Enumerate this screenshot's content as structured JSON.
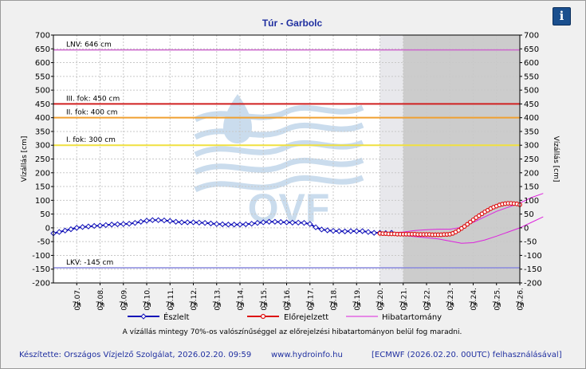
{
  "header": {
    "title": "Túr - Garbolc",
    "info_button_label": "i",
    "info_icon": "info-icon"
  },
  "colors": {
    "background": "#f0f0f0",
    "plot_background": "#ffffff",
    "shade_light": "#e8e8ec",
    "shade_dark": "#cccccc",
    "observed": "#1010b8",
    "forecast": "#dd1010",
    "error_band": "#dd22dd",
    "lnv": "#cc66cc",
    "lkv": "#8888dd",
    "level_3": "#d02020",
    "level_2": "#f0a030",
    "level_1": "#f0e040"
  },
  "chart_data": {
    "type": "line",
    "ylabel_left": "Vízállás [cm]",
    "ylabel_right": "Vízállás [cm]",
    "ylim": [
      -200,
      700
    ],
    "yticks": [
      -200,
      -150,
      -100,
      -50,
      0,
      50,
      100,
      150,
      200,
      250,
      300,
      350,
      400,
      450,
      500,
      550,
      600,
      650,
      700
    ],
    "x_range_days": [
      -1,
      19
    ],
    "x_tick_labels": [
      "02.07.",
      "02.08.",
      "02.09.",
      "02.10.",
      "02.11.",
      "02.12.",
      "02.13.",
      "02.14.",
      "02.15.",
      "02.16.",
      "02.17.",
      "02.18.",
      "02.19.",
      "02.20.",
      "02.21.",
      "02.22.",
      "02.23.",
      "02.24.",
      "02.25.",
      "02.26."
    ],
    "x_tick_sublabel": "7h",
    "shaded_regions": [
      {
        "from": "02.20. 7h",
        "to": "02.21. 7h",
        "shade": "light"
      },
      {
        "from": "02.21. 7h",
        "to": "02.26. 7h",
        "shade": "dark"
      }
    ],
    "reference_lines": [
      {
        "label": "LNV: 646 cm",
        "value": 646,
        "color": "#cc66cc"
      },
      {
        "label": "III. fok: 450 cm",
        "value": 450,
        "color": "#d02020"
      },
      {
        "label": "II. fok: 400 cm",
        "value": 400,
        "color": "#f0a030"
      },
      {
        "label": "I. fok: 300 cm",
        "value": 300,
        "color": "#f0e040"
      },
      {
        "label": "LKV: -145 cm",
        "value": -145,
        "color": "#8888dd"
      }
    ],
    "series": [
      {
        "name": "Észlelt",
        "x_start": "02.06. 7h",
        "step_hours": 6,
        "values": [
          -20,
          -15,
          -10,
          -5,
          0,
          3,
          5,
          7,
          8,
          10,
          12,
          13,
          14,
          15,
          18,
          22,
          26,
          28,
          28,
          27,
          25,
          22,
          20,
          20,
          20,
          19,
          18,
          16,
          14,
          13,
          12,
          12,
          12,
          13,
          15,
          18,
          20,
          22,
          22,
          21,
          20,
          19,
          19,
          18,
          14,
          2,
          -6,
          -9,
          -11,
          -12,
          -13,
          -12,
          -12,
          -12,
          -15,
          -18,
          -18,
          -19,
          -18
        ]
      },
      {
        "name": "Előrejelzett",
        "x_start": "02.20. 7h",
        "step_hours": 3,
        "values": [
          -20,
          -21,
          -21,
          -22,
          -22,
          -22,
          -23,
          -23,
          -23,
          -23,
          -23,
          -23,
          -23,
          -24,
          -24,
          -24,
          -24,
          -24,
          -25,
          -25,
          -25,
          -25,
          -24,
          -24,
          -23,
          -20,
          -15,
          -9,
          -2,
          5,
          13,
          21,
          29,
          37,
          44,
          51,
          58,
          64,
          70,
          75,
          79,
          83,
          86,
          88,
          89,
          89,
          88,
          87,
          84
        ]
      },
      {
        "name": "Hibatartomány",
        "x_start": "02.20. 7h",
        "step_hours": 12,
        "upper": [
          -20,
          -18,
          -15,
          -10,
          -7,
          -5,
          -5,
          2,
          20,
          40,
          60,
          75,
          90,
          110,
          125
        ],
        "lower": [
          -20,
          -24,
          -28,
          -32,
          -36,
          -40,
          -48,
          -56,
          -54,
          -44,
          -30,
          -15,
          0,
          20,
          40
        ]
      }
    ]
  },
  "legend": {
    "observed": "Észlelt",
    "forecast": "Előrejelzett",
    "band": "Hibatartomány"
  },
  "footer": {
    "note": "A vízállás mintegy 70%-os valószínűséggel az előrejelzési hibatartományon belül fog maradni.",
    "author": "Készítette: Országos Vízjelző Szolgálat, 2026.02.20. 09:59",
    "website": "www.hydroinfo.hu",
    "model": "[ECMWF (2026.02.20. 00UTC) felhasználásával]"
  },
  "watermark": {
    "text": "OVF"
  }
}
